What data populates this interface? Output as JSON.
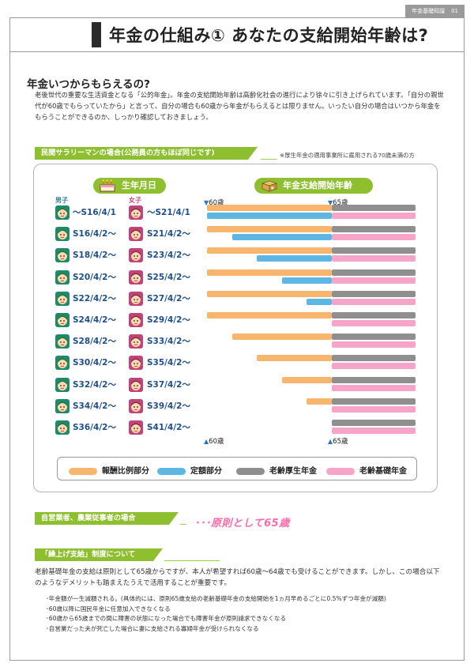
{
  "header": {
    "tab_label": "年金基礎知識",
    "page_num": "01"
  },
  "page_title": "年金の仕組み① あなたの支給開始年齢は?",
  "section": {
    "heading": "年金いつからもらえるの?",
    "intro": "老後世代の重要な生活資金となる「公的年金」。年金の支給開始年齢は高齢化社会の進行により徐々に引き上げられています。「自分の親世代が60歳でもらっていたから」と言って、自分の場合も60歳から年金がもらえるとは限りません。いったい自分の場合はいつから年金をもらうことができるのか、しっかり確認しておきましょう。"
  },
  "salaryman_bar": "民間サラリーマンの場合(公務員の方もほぼ同じです)",
  "note": "※厚生年金の適用事業所に雇用される70歳未満の方",
  "birth_pill": "生年月日",
  "pension_pill": "年金支給開始年齢",
  "male_label": "男子",
  "female_label": "女子",
  "top_markers": {
    "left": "60歳",
    "right": "65歳"
  },
  "bottom_markers": {
    "left": "60歳",
    "right": "65歳"
  },
  "rows": [
    {
      "male": "〜S16/4/1",
      "female": "〜S21/4/1"
    },
    {
      "male": "S16/4/2〜",
      "female": "S21/4/2〜"
    },
    {
      "male": "S18/4/2〜",
      "female": "S23/4/2〜"
    },
    {
      "male": "S20/4/2〜",
      "female": "S25/4/2〜"
    },
    {
      "male": "S22/4/2〜",
      "female": "S27/4/2〜"
    },
    {
      "male": "S24/4/2〜",
      "female": "S29/4/2〜"
    },
    {
      "male": "S28/4/2〜",
      "female": "S33/4/2〜"
    },
    {
      "male": "S30/4/2〜",
      "female": "S35/4/2〜"
    },
    {
      "male": "S32/4/2〜",
      "female": "S37/4/2〜"
    },
    {
      "male": "S34/4/2〜",
      "female": "S39/4/2〜"
    },
    {
      "male": "S36/4/2〜",
      "female": "S41/4/2〜"
    }
  ],
  "schedule": [
    {
      "hourei_start": 60,
      "teigaku_start": 60
    },
    {
      "hourei_start": 60,
      "teigaku_start": 61
    },
    {
      "hourei_start": 60,
      "teigaku_start": 62
    },
    {
      "hourei_start": 60,
      "teigaku_start": 63
    },
    {
      "hourei_start": 60,
      "teigaku_start": 64
    },
    {
      "hourei_start": 60,
      "teigaku_start": 65
    },
    {
      "hourei_start": 61,
      "teigaku_start": 65
    },
    {
      "hourei_start": 62,
      "teigaku_start": 65
    },
    {
      "hourei_start": 63,
      "teigaku_start": 65
    },
    {
      "hourei_start": 64,
      "teigaku_start": 65
    },
    {
      "hourei_start": 65,
      "teigaku_start": 65
    }
  ],
  "legend": [
    {
      "label": "報酬比例部分",
      "color": "#f7b56e"
    },
    {
      "label": "定額部分",
      "color": "#5eb7e3"
    },
    {
      "label": "老齢厚生年金",
      "color": "#8f8f8f"
    },
    {
      "label": "老齢基礎年金",
      "color": "#f6a5c8"
    }
  ],
  "self_employed_bar": "自営業者、農業従事者の場合",
  "self_employed_answer": "･･･原則として65歳",
  "kuriage_bar": "「繰上げ支給」制度について",
  "kuriage_text": "老齢基礎年金の支給は原則として65歳からですが、本人が希望すれば60歳〜64歳でも受けることができます。しかし、この場合以下のようなデメリットも踏まえたうえで活用することが重要です。",
  "bullets": [
    "･年金額が一生減額される。(具体的には、原則65歳支給の老齢基礎年金の支給開始を1ヵ月早めるごとに0.5%ずつ年金が減額)",
    "･60歳以降に国民年金に任意加入できなくなる",
    "･60歳から65歳までの間に障害の状態になった場合でも障害年金が原則請求できなくなる",
    "･自営業だった夫が死亡した場合に妻に支給される寡婦年金が受けられなくなる"
  ]
}
